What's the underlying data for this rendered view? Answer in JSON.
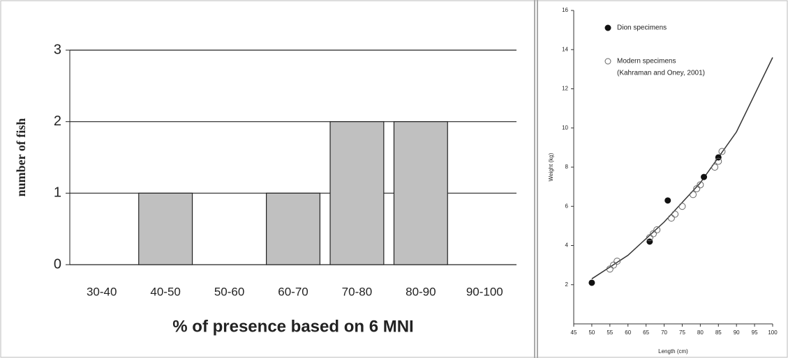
{
  "chart_data": [
    {
      "type": "bar",
      "ylabel": "number of fish",
      "xlabel": "% of presence based on 6 MNI",
      "categories": [
        "30-40",
        "40-50",
        "50-60",
        "60-70",
        "70-80",
        "80-90",
        "90-100"
      ],
      "values": [
        0,
        1,
        0,
        1,
        2,
        2,
        0
      ],
      "color": "#c0c0c0",
      "ylim": [
        0,
        3
      ],
      "yticks": [
        0,
        1,
        2,
        3
      ],
      "grid": true
    },
    {
      "type": "scatter",
      "ylabel": "Weight (kg)",
      "xlabel": "Length (cm)",
      "xlim": [
        45,
        100
      ],
      "xticks": [
        45,
        50,
        55,
        60,
        65,
        70,
        75,
        80,
        85,
        90,
        95,
        100
      ],
      "ylim": [
        0,
        16
      ],
      "yticks": [
        2,
        4,
        6,
        8,
        10,
        12,
        14,
        16
      ],
      "series": [
        {
          "name": "Dion specimens",
          "color": "#111111",
          "filled": true,
          "x": [
            50,
            66,
            71,
            81,
            85
          ],
          "values": [
            2.1,
            4.2,
            6.3,
            7.5,
            8.5
          ]
        },
        {
          "name": "Modern specimens",
          "source": "(Kahraman and Oney, 2001)",
          "color": "#666666",
          "filled": false,
          "x": [
            55,
            56,
            57,
            66,
            67,
            68,
            72,
            73,
            75,
            78,
            79,
            80,
            84,
            85,
            86
          ],
          "values": [
            2.8,
            3,
            3.2,
            4.4,
            4.6,
            4.8,
            5.4,
            5.6,
            6,
            6.6,
            6.9,
            7.1,
            8,
            8.3,
            8.8
          ]
        }
      ],
      "fit": {
        "color": "#333333",
        "x": [
          50,
          60,
          70,
          80,
          90,
          100
        ],
        "values": [
          2.3,
          3.5,
          5.2,
          7.2,
          9.8,
          13.6
        ]
      }
    }
  ]
}
